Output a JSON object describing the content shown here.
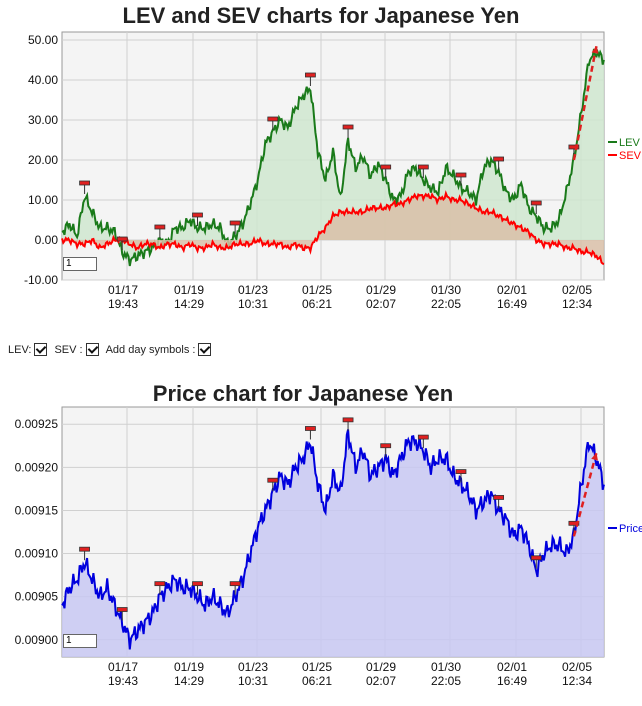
{
  "top_chart": {
    "title": "LEV and SEV charts for Japanese Yen",
    "page_value": "1",
    "colors": {
      "lev": "#1a7a1a",
      "lev_fill": "#cfe6cf",
      "sev": "#ff0000",
      "sev_fill": "#d9bfa8",
      "signal": "#e03030"
    }
  },
  "bottom_chart": {
    "title": "Price chart for Japanese Yen",
    "page_value": "1",
    "colors": {
      "price": "#0000dd",
      "price_fill": "#c8c8f2"
    }
  },
  "controls": {
    "lev_label": "LEV:",
    "sev_label": "SEV :",
    "day_symbols_label": "Add day symbols :"
  },
  "chart_data": [
    {
      "type": "line",
      "title": "LEV and SEV charts for Japanese Yen",
      "ylim": [
        -10,
        52
      ],
      "yticks": [
        "50.00",
        "40.00",
        "30.00",
        "20.00",
        "10.00",
        "0.00",
        "-10.00"
      ],
      "ytick_values": [
        50,
        40,
        30,
        20,
        10,
        0,
        -10
      ],
      "x_ticks": [
        {
          "date": "01/17",
          "time": "19:43"
        },
        {
          "date": "01/19",
          "time": "14:29"
        },
        {
          "date": "01/23",
          "time": "10:31"
        },
        {
          "date": "01/25",
          "time": "06:21"
        },
        {
          "date": "01/29",
          "time": "02:07"
        },
        {
          "date": "01/30",
          "time": "22:05"
        },
        {
          "date": "02/01",
          "time": "16:49"
        },
        {
          "date": "02/05",
          "time": "12:34"
        }
      ],
      "grid": true,
      "legend_position": "right",
      "series": [
        {
          "name": "LEV",
          "color": "#1a7a1a",
          "values": [
            2,
            4,
            1,
            11,
            7,
            3,
            3,
            2,
            -3,
            -5,
            -4,
            -3,
            -2,
            0,
            -1,
            3,
            3,
            5,
            3,
            3,
            4,
            3,
            -1,
            1,
            4,
            9,
            15,
            24,
            27,
            30,
            28,
            33,
            36,
            38,
            22,
            15,
            22,
            10,
            25,
            18,
            21,
            16,
            19,
            15,
            10,
            11,
            17,
            18,
            15,
            13,
            12,
            18,
            16,
            13,
            12,
            10,
            18,
            20,
            17,
            12,
            10,
            14,
            8,
            6,
            3,
            3,
            5,
            12,
            20,
            32,
            45,
            47,
            45
          ]
        },
        {
          "name": "SEV",
          "color": "#ff0000",
          "values": [
            0,
            0,
            -1,
            -1,
            0,
            -2,
            -1,
            0,
            0,
            -1,
            -2,
            -1,
            -1,
            -2,
            -1,
            -1,
            -2,
            -1,
            -2,
            -2,
            -1,
            -2,
            -2,
            -1,
            -1,
            -1,
            0,
            -1,
            -1,
            -1,
            -2,
            -1,
            -2,
            -2,
            1,
            3,
            6,
            7,
            7,
            7,
            7,
            8,
            8,
            8,
            9,
            9,
            10,
            11,
            11,
            11,
            10,
            11,
            10,
            10,
            9,
            8,
            7,
            7,
            6,
            5,
            4,
            3,
            2,
            0,
            -1,
            -1,
            -1,
            -2,
            -2,
            -3,
            -3,
            -4,
            -6
          ]
        }
      ]
    },
    {
      "type": "area",
      "title": "Price chart for Japanese Yen",
      "ylim": [
        0.00898,
        0.00927
      ],
      "yticks": [
        "0.00925",
        "0.00920",
        "0.00915",
        "0.00910",
        "0.00905",
        "0.00900"
      ],
      "ytick_values": [
        0.00925,
        0.0092,
        0.00915,
        0.0091,
        0.00905,
        0.009
      ],
      "x_ticks": [
        {
          "date": "01/17",
          "time": "19:43"
        },
        {
          "date": "01/19",
          "time": "14:29"
        },
        {
          "date": "01/23",
          "time": "10:31"
        },
        {
          "date": "01/25",
          "time": "06:21"
        },
        {
          "date": "01/29",
          "time": "02:07"
        },
        {
          "date": "01/30",
          "time": "22:05"
        },
        {
          "date": "02/01",
          "time": "16:49"
        },
        {
          "date": "02/05",
          "time": "12:34"
        }
      ],
      "grid": true,
      "legend_position": "right",
      "series": [
        {
          "name": "Price",
          "color": "#0000dd",
          "values": [
            0.00904,
            0.00906,
            0.00907,
            0.00909,
            0.00907,
            0.00905,
            0.00906,
            0.00904,
            0.00902,
            0.009,
            0.00901,
            0.00902,
            0.00903,
            0.00905,
            0.00906,
            0.00907,
            0.00906,
            0.00906,
            0.00905,
            0.00904,
            0.00905,
            0.00904,
            0.00903,
            0.00905,
            0.00907,
            0.0091,
            0.00913,
            0.00915,
            0.00917,
            0.00919,
            0.00918,
            0.0092,
            0.00921,
            0.00923,
            0.00918,
            0.00915,
            0.00919,
            0.00917,
            0.00924,
            0.0092,
            0.00922,
            0.00919,
            0.0092,
            0.00921,
            0.00919,
            0.00921,
            0.00923,
            0.00923,
            0.00922,
            0.0092,
            0.00921,
            0.00921,
            0.00919,
            0.00918,
            0.00917,
            0.00915,
            0.00916,
            0.00917,
            0.00915,
            0.00914,
            0.00912,
            0.00913,
            0.00911,
            0.00908,
            0.0091,
            0.00911,
            0.00911,
            0.0091,
            0.00912,
            0.00918,
            0.00923,
            0.00921,
            0.00918
          ]
        }
      ]
    }
  ]
}
